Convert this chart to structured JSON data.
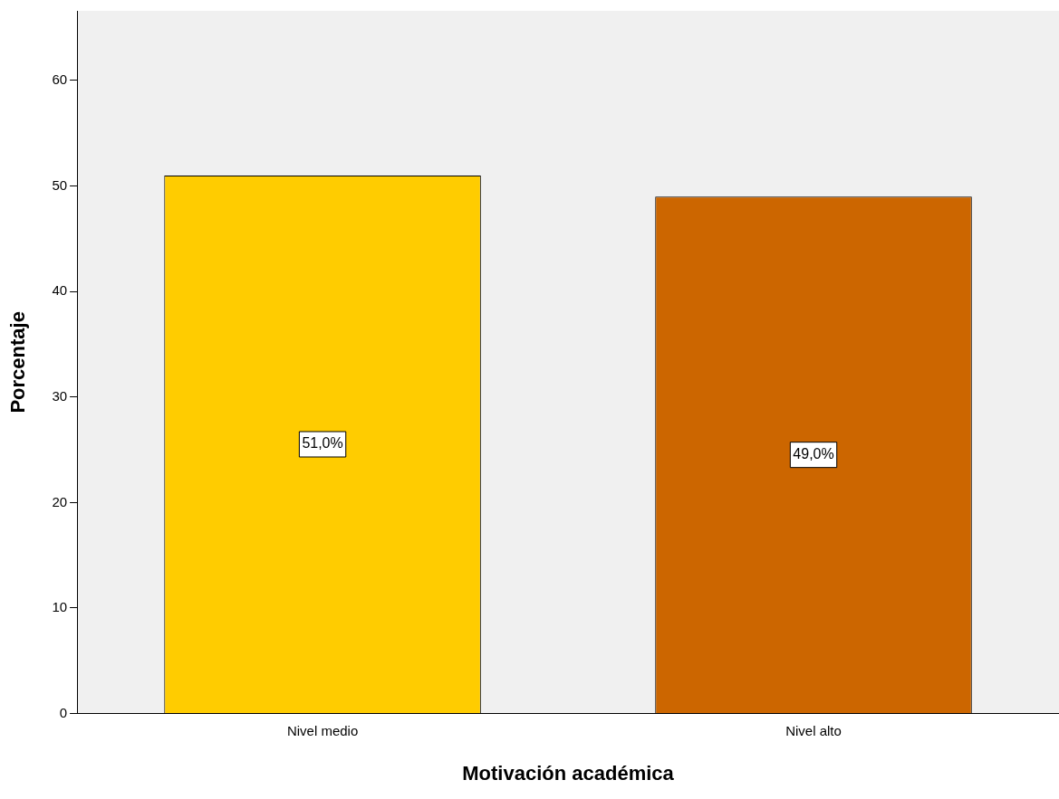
{
  "chart_data": {
    "type": "bar",
    "xlabel": "Motivación académica",
    "ylabel": "Porcentaje",
    "categories": [
      "Nivel medio",
      "Nivel alto"
    ],
    "values": [
      51,
      49
    ],
    "colors": [
      "#ffcc00",
      "#cc6600"
    ],
    "value_labels": [
      "51,0%",
      "49,0%"
    ],
    "ylim": [
      0,
      66.6
    ],
    "yticks": [
      0,
      10,
      20,
      30,
      40,
      50,
      60
    ],
    "grid": false,
    "legend": false
  }
}
